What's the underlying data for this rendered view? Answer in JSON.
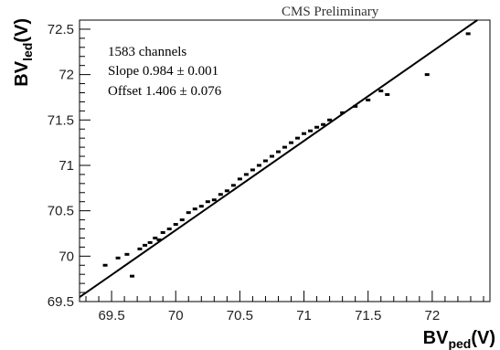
{
  "header": "CMS Preliminary",
  "chart_data": {
    "type": "scatter",
    "xlabel": {
      "main": "BV",
      "sub": "ped",
      "unit": "(V)"
    },
    "ylabel": {
      "main": "BV",
      "sub": "led",
      "unit": "(V)"
    },
    "xlim": [
      69.25,
      72.45
    ],
    "ylim": [
      69.5,
      72.6
    ],
    "xticks": [
      "69.5",
      "70",
      "70.5",
      "71",
      "71.5",
      "72"
    ],
    "yticks": [
      "69.5",
      "70",
      "70.5",
      "71",
      "71.5",
      "72",
      "72.5"
    ],
    "annotations": [
      "1583 channels",
      "Slope 0.984 ± 0.001",
      "Offset 1.406 ± 0.076"
    ],
    "fit": {
      "slope": 0.984,
      "offset": 1.406
    },
    "point_count": 1583,
    "grid": false,
    "points": [
      [
        69.45,
        69.9
      ],
      [
        69.55,
        69.98
      ],
      [
        69.62,
        70.02
      ],
      [
        69.66,
        69.78
      ],
      [
        69.72,
        70.08
      ],
      [
        69.76,
        70.12
      ],
      [
        69.8,
        70.15
      ],
      [
        69.84,
        70.2
      ],
      [
        69.87,
        70.18
      ],
      [
        69.9,
        70.26
      ],
      [
        69.95,
        70.3
      ],
      [
        70.0,
        70.35
      ],
      [
        70.05,
        70.4
      ],
      [
        70.1,
        70.48
      ],
      [
        70.15,
        70.52
      ],
      [
        70.2,
        70.55
      ],
      [
        70.25,
        70.6
      ],
      [
        70.3,
        70.62
      ],
      [
        70.35,
        70.68
      ],
      [
        70.4,
        70.72
      ],
      [
        70.45,
        70.78
      ],
      [
        70.5,
        70.85
      ],
      [
        70.55,
        70.9
      ],
      [
        70.6,
        70.95
      ],
      [
        70.65,
        71.0
      ],
      [
        70.7,
        71.05
      ],
      [
        70.75,
        71.1
      ],
      [
        70.8,
        71.15
      ],
      [
        70.85,
        71.2
      ],
      [
        70.9,
        71.25
      ],
      [
        70.95,
        71.3
      ],
      [
        71.0,
        71.35
      ],
      [
        71.05,
        71.38
      ],
      [
        71.1,
        71.42
      ],
      [
        71.15,
        71.45
      ],
      [
        71.2,
        71.5
      ],
      [
        71.3,
        71.58
      ],
      [
        71.4,
        71.65
      ],
      [
        71.5,
        71.72
      ],
      [
        71.6,
        71.82
      ],
      [
        71.65,
        71.78
      ],
      [
        71.96,
        72.0
      ],
      [
        72.28,
        72.45
      ]
    ]
  }
}
